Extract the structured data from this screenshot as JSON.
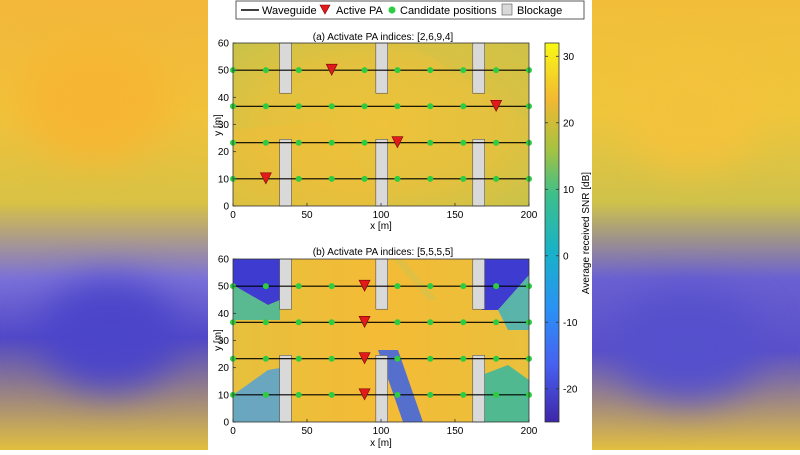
{
  "legend": {
    "items": [
      {
        "label": "Waveguide",
        "kind": "line"
      },
      {
        "label": "Active PA",
        "kind": "triangle"
      },
      {
        "label": "Candidate positions",
        "kind": "dot"
      },
      {
        "label": "Blockage",
        "kind": "rect"
      }
    ]
  },
  "colorbar": {
    "label": "Average received SNR [dB]",
    "ticks": [
      30,
      20,
      10,
      0,
      -10,
      -20
    ],
    "range": [
      -25,
      32
    ]
  },
  "colors": {
    "waveguide": "#000000",
    "active_pa": "#e31a1c",
    "candidate": "#2ecc40",
    "blockage": "#d9d9d9"
  },
  "chart_data": [
    {
      "type": "heatmap",
      "title": "(a) Activate PA indices: [2,6,9,4]",
      "xlabel": "x [m]",
      "ylabel": "y [m]",
      "xlim": [
        0,
        200
      ],
      "ylim": [
        0,
        60
      ],
      "xticks": [
        0,
        50,
        100,
        150,
        200
      ],
      "yticks": [
        0,
        10,
        20,
        30,
        40,
        50,
        60
      ],
      "waveguides_y": [
        10,
        23.3,
        36.7,
        50
      ],
      "candidate_x": [
        0,
        22.2,
        44.4,
        66.7,
        88.9,
        111.1,
        133.3,
        155.6,
        177.8,
        200
      ],
      "active_pa": [
        [
          22.2,
          10
        ],
        [
          111.1,
          23.3
        ],
        [
          177.8,
          36.7
        ],
        [
          66.7,
          50
        ]
      ],
      "blockages": [
        [
          31.5,
          0,
          8,
          24.5
        ],
        [
          96.5,
          0,
          8,
          24.5
        ],
        [
          162,
          0,
          8,
          24.5
        ],
        [
          31.5,
          41.5,
          8,
          18.5
        ],
        [
          96.5,
          41.5,
          8,
          18.5
        ],
        [
          162,
          41.5,
          8,
          18.5
        ]
      ]
    },
    {
      "type": "heatmap",
      "title": "(b) Activate PA indices: [5,5,5,5]",
      "xlabel": "x [m]",
      "ylabel": "y [m]",
      "xlim": [
        0,
        200
      ],
      "ylim": [
        0,
        60
      ],
      "xticks": [
        0,
        50,
        100,
        150,
        200
      ],
      "yticks": [
        0,
        10,
        20,
        30,
        40,
        50,
        60
      ],
      "waveguides_y": [
        10,
        23.3,
        36.7,
        50
      ],
      "candidate_x": [
        0,
        22.2,
        44.4,
        66.7,
        88.9,
        111.1,
        133.3,
        155.6,
        177.8,
        200
      ],
      "active_pa": [
        [
          88.9,
          10
        ],
        [
          88.9,
          23.3
        ],
        [
          88.9,
          36.7
        ],
        [
          88.9,
          50
        ]
      ],
      "blockages": [
        [
          31.5,
          0,
          8,
          24.5
        ],
        [
          96.5,
          0,
          8,
          24.5
        ],
        [
          162,
          0,
          8,
          24.5
        ],
        [
          31.5,
          41.5,
          8,
          18.5
        ],
        [
          96.5,
          41.5,
          8,
          18.5
        ],
        [
          162,
          41.5,
          8,
          18.5
        ]
      ]
    }
  ]
}
